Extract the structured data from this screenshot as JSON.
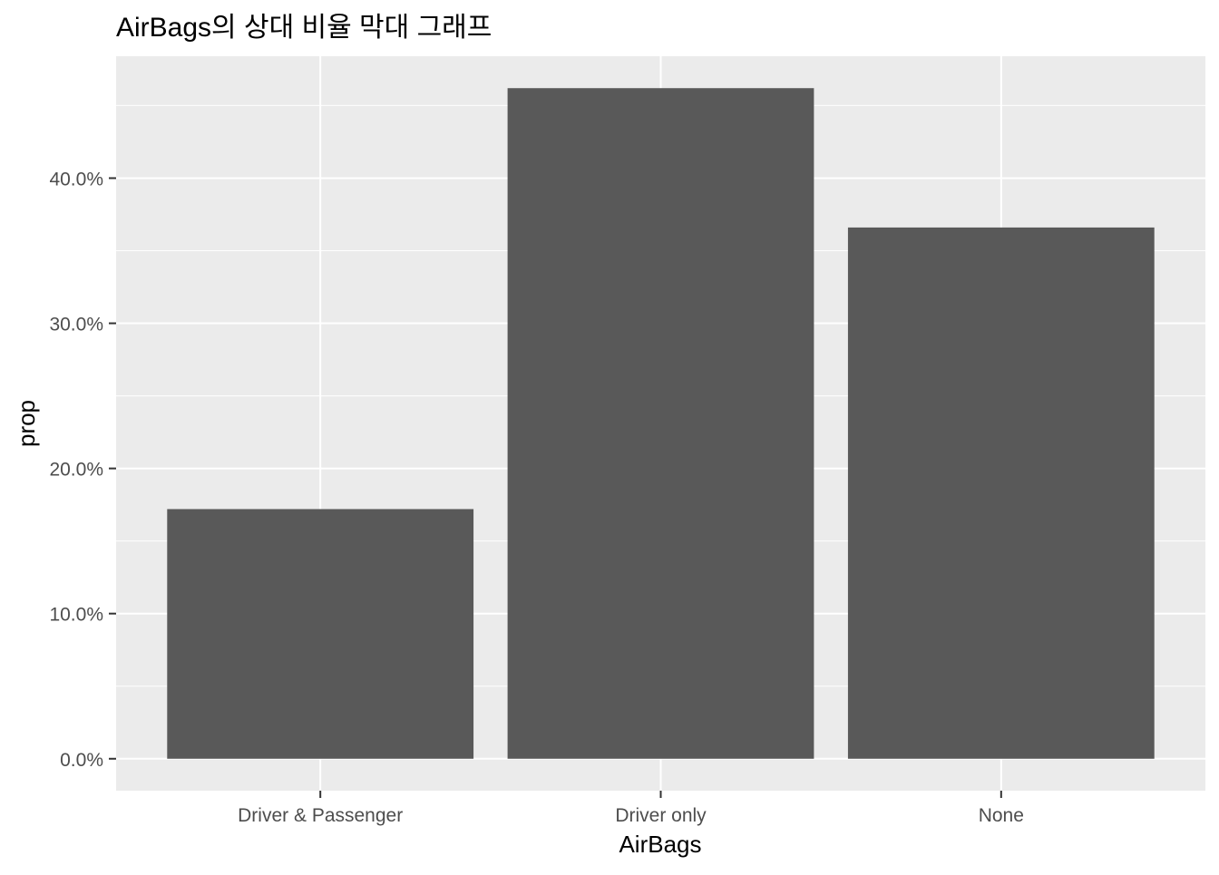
{
  "chart_data": {
    "type": "bar",
    "title": "AirBags의 상대 비율 막대 그래프",
    "xlabel": "AirBags",
    "ylabel": "prop",
    "categories": [
      "Driver & Passenger",
      "Driver only",
      "None"
    ],
    "values": [
      0.172,
      0.462,
      0.366
    ],
    "ylim": [
      -0.022,
      0.484
    ],
    "y_ticks": [
      0.0,
      0.1,
      0.2,
      0.3,
      0.4
    ],
    "y_tick_labels": [
      "0.0%",
      "10.0%",
      "20.0%",
      "30.0%",
      "40.0%"
    ],
    "y_minor_ticks": [
      0.05,
      0.15,
      0.25,
      0.35,
      0.45
    ],
    "grid": true,
    "legend": "none",
    "colors": {
      "bar": "#595959",
      "panel_background": "#ebebeb",
      "grid": "#ffffff",
      "tick_mark": "#333333"
    }
  }
}
